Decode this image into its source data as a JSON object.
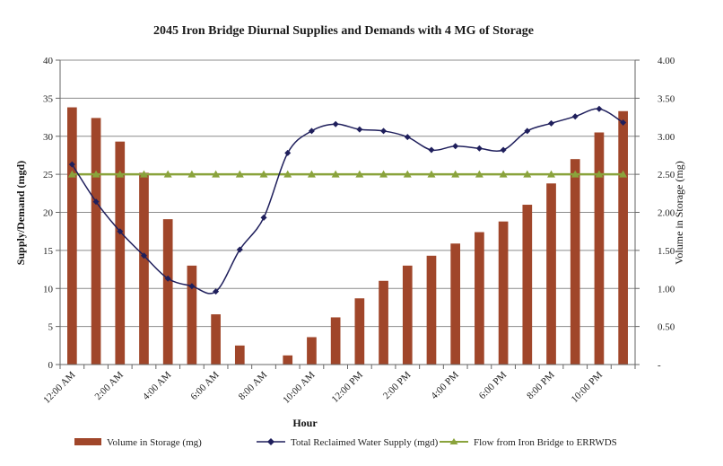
{
  "chart_data": {
    "type": "bar+line",
    "title": "2045 Iron Bridge Diurnal Supplies and Demands with 4 MG of Storage",
    "xlabel": "Hour",
    "ylabel_left": "Supply/Demand (mgd)",
    "ylabel_right": "Volume in Storage (mg)",
    "ylim_left": [
      0,
      40
    ],
    "ylim_right": [
      0,
      4
    ],
    "left_ticks": [
      "0",
      "5",
      "10",
      "15",
      "20",
      "25",
      "30",
      "35",
      "40"
    ],
    "right_ticks": [
      "-",
      "0.50",
      "1.00",
      "1.50",
      "2.00",
      "2.50",
      "3.00",
      "3.50",
      "4.00"
    ],
    "x_tick_labels": [
      "12:00 AM",
      "2:00 AM",
      "4:00 AM",
      "6:00 AM",
      "8:00 AM",
      "10:00 AM",
      "12:00 PM",
      "2:00 PM",
      "4:00 PM",
      "6:00 PM",
      "8:00 PM",
      "10:00 PM"
    ],
    "hours": [
      0,
      1,
      2,
      3,
      4,
      5,
      6,
      7,
      8,
      9,
      10,
      11,
      12,
      13,
      14,
      15,
      16,
      17,
      18,
      19,
      20,
      21,
      22,
      23
    ],
    "grid": true,
    "legend_position": "bottom",
    "series": [
      {
        "name": "Volume in Storage (mg)",
        "type": "bar",
        "axis": "right",
        "color": "#a0462a",
        "values": [
          3.38,
          3.24,
          2.93,
          2.52,
          1.91,
          1.3,
          0.66,
          0.25,
          0.0,
          0.12,
          0.36,
          0.62,
          0.87,
          1.1,
          1.3,
          1.43,
          1.59,
          1.74,
          1.88,
          2.1,
          2.38,
          2.7,
          3.05,
          3.33
        ]
      },
      {
        "name": "Total Reclaimed Water Supply (mgd)",
        "type": "line",
        "axis": "left",
        "color": "#1f1f5c",
        "marker": "diamond",
        "values": [
          26.3,
          21.4,
          17.5,
          14.3,
          11.3,
          10.3,
          9.6,
          15.1,
          19.3,
          27.8,
          30.7,
          31.6,
          30.9,
          30.7,
          29.9,
          28.2,
          28.7,
          28.4,
          28.2,
          30.7,
          31.7,
          32.6,
          33.6,
          31.8
        ]
      },
      {
        "name": "Flow from Iron Bridge to ERRWDS",
        "type": "line",
        "axis": "left",
        "color": "#8aa33c",
        "marker": "triangle",
        "values": [
          25,
          25,
          25,
          25,
          25,
          25,
          25,
          25,
          25,
          25,
          25,
          25,
          25,
          25,
          25,
          25,
          25,
          25,
          25,
          25,
          25,
          25,
          25,
          25
        ]
      }
    ]
  }
}
